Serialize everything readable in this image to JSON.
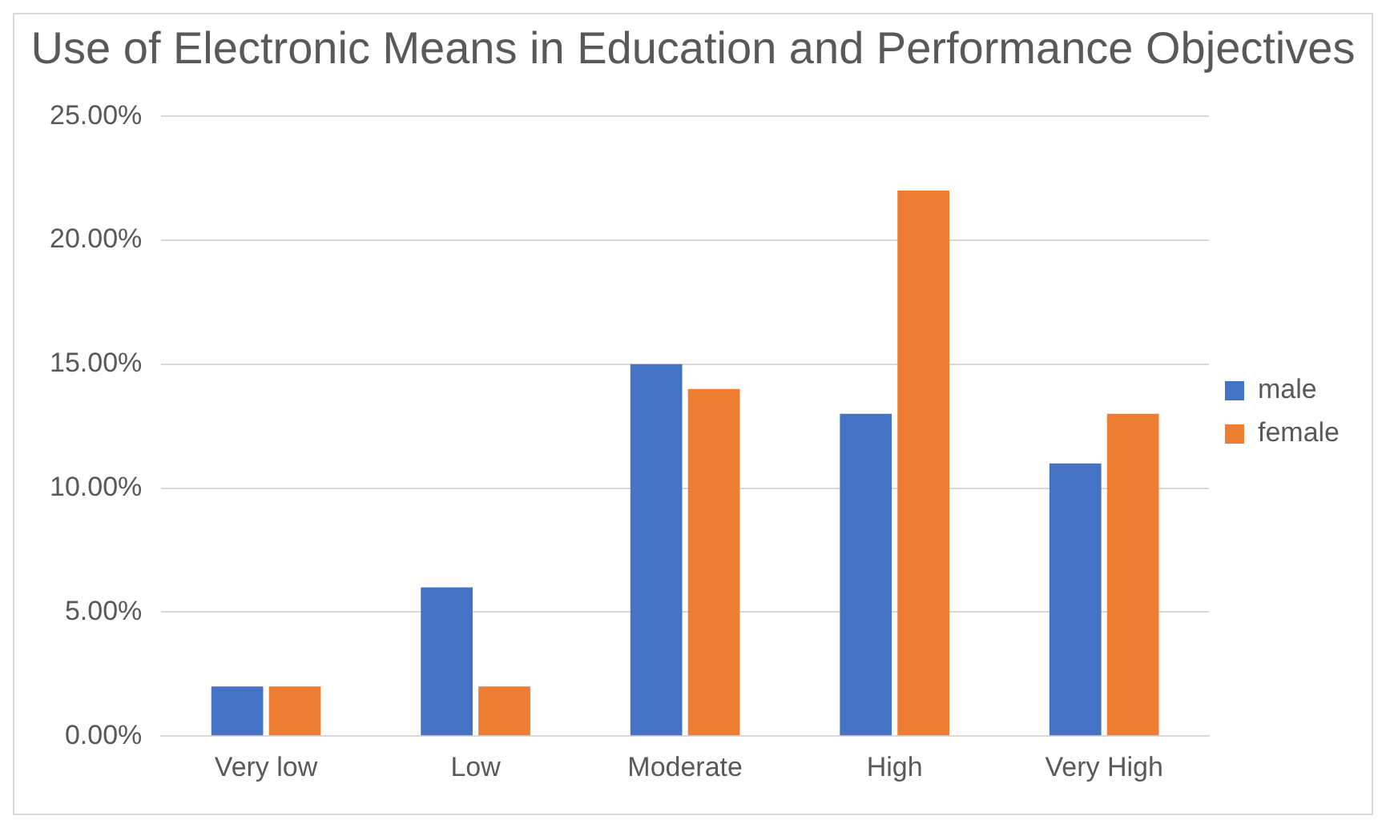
{
  "chart_data": {
    "type": "bar",
    "title": "Use of Electronic Means in Education and Performance Objectives",
    "categories": [
      "Very low",
      "Low",
      "Moderate",
      "High",
      "Very High"
    ],
    "series": [
      {
        "name": "male",
        "color": "#4472c4",
        "values": [
          2,
          6,
          15,
          13,
          11
        ]
      },
      {
        "name": "female",
        "color": "#ed7d31",
        "values": [
          2,
          2,
          14,
          22,
          13
        ]
      }
    ],
    "ylim": [
      0,
      25
    ],
    "yticks": [
      {
        "value": 0,
        "label": "0.00%"
      },
      {
        "value": 5,
        "label": "5.00%"
      },
      {
        "value": 10,
        "label": "10.00%"
      },
      {
        "value": 15,
        "label": "15.00%"
      },
      {
        "value": 20,
        "label": "20.00%"
      },
      {
        "value": 25,
        "label": "25.00%"
      }
    ],
    "grid": "y",
    "legend": "right"
  }
}
